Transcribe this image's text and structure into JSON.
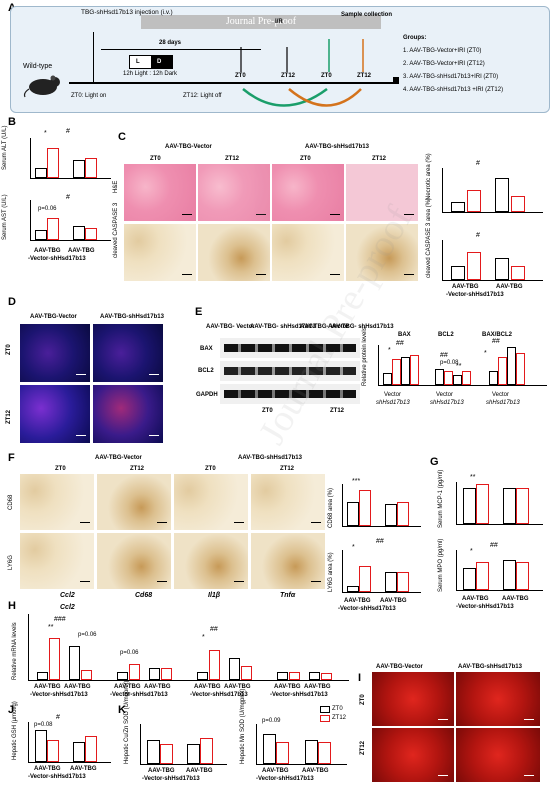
{
  "panel_letters": [
    "A",
    "B",
    "C",
    "D",
    "E",
    "F",
    "G",
    "H",
    "I",
    "J",
    "K"
  ],
  "banner": "Journal Pre-proof",
  "watermark": "Journal Pre-proof",
  "panelA": {
    "mouse_label": "Wild-type",
    "injection": "TBG-shHsd17b13 injection (i.v.)",
    "days": "28 days",
    "light_L": "L",
    "light_D": "D",
    "light_cycle": "12h Light : 12h Dark",
    "ir": "I/R",
    "sample": "Sample collection",
    "zt0": "ZT0",
    "zt12": "ZT12",
    "light_on": "ZT0: Light on",
    "light_off": "ZT12: Light off",
    "groups_title": "Groups:",
    "groups": [
      "1. AAV-TBG-Vector+IRI (ZT0)",
      "2. AAV-TBG-Vector+IRI (ZT12)",
      "3. AAV-TBG-shHsd17b13+IRI (ZT0)",
      "4. AAV-TBG-shHsd17b13 +IRI (ZT12)"
    ]
  },
  "labels": {
    "serum_alt": "Serum ALT (U/L)",
    "serum_ast": "Serum AST (U/L)",
    "aav_tbg": "AAV-TBG",
    "vector_sh": "-Vector-shHsd17b13",
    "vector": "AAV-TBG-Vector",
    "sh": "AAV-TBG-shHsd17b13",
    "he": "H&E",
    "cleaved": "cleaved CASPASE 3",
    "necrotic": "Necrotic area (%)",
    "cleaved_area": "cleaved CASPASE 3 area (%)",
    "bax": "BAX",
    "bcl2": "BCL2",
    "gapdh": "GAPDH",
    "bax_bcl2": "BAX/BCL2",
    "rel_protein": "Relative protein levels",
    "cd68": "CD68",
    "ly6g": "LY6G",
    "cd68_area": "CD68 area (%)",
    "ly6g_area": "LY6G area (%)",
    "mcp1": "Serum MCP-1 (pg/ml)",
    "mpo": "Serum MPO (pg/ml)",
    "rel_mrna": "Relative mRNA levels",
    "genes": [
      "Ccl2",
      "Cd68",
      "Il1β",
      "Tnfα"
    ],
    "gsh": "Hepatic GSH (μmol/g)",
    "cuzn": "Hepatic Cu/Zn SOD (U/mgprot)",
    "mn": "Hepatic Mn SOD (U/mgprot)",
    "legend_zt0": "ZT0",
    "legend_zt12": "ZT12",
    "p006": "p=0.06",
    "p008": "p=0.08",
    "p009": "p=0.09",
    "star1": "*",
    "star2": "**",
    "star3": "***",
    "hash1": "#",
    "hash2": "##",
    "hash3": "###",
    "e_vec": "AAV-TBG- Vector",
    "e_sh": "AAV-TBG- shHsd17b13",
    "shHsd17b13": "shHsd17b13",
    "vec_short": "Vector"
  },
  "chart_data": [
    {
      "type": "bar",
      "panel": "B",
      "ylabel": "Serum ALT (U/L)",
      "categories": [
        "Vector ZT0",
        "Vector ZT12",
        "sh ZT0",
        "sh ZT12"
      ],
      "values": [
        0.25,
        0.85,
        0.5,
        0.55
      ]
    },
    {
      "type": "bar",
      "panel": "B",
      "ylabel": "Serum AST (U/L)",
      "categories": [
        "Vector ZT0",
        "Vector ZT12",
        "sh ZT0",
        "sh ZT12"
      ],
      "values": [
        0.25,
        0.6,
        0.35,
        0.3
      ]
    },
    {
      "type": "bar",
      "panel": "C",
      "ylabel": "Necrotic area (%)",
      "categories": [
        "Vector ZT0",
        "Vector ZT12",
        "sh ZT0",
        "sh ZT12"
      ],
      "values": [
        0.2,
        0.5,
        0.75,
        0.35
      ]
    },
    {
      "type": "bar",
      "panel": "C",
      "ylabel": "cleaved CASPASE 3 area (%)",
      "categories": [
        "Vector ZT0",
        "Vector ZT12",
        "sh ZT0",
        "sh ZT12"
      ],
      "values": [
        0.35,
        0.75,
        0.55,
        0.35
      ]
    },
    {
      "type": "bar",
      "panel": "F",
      "ylabel": "CD68 area (%)",
      "categories": [
        "Vector ZT0",
        "Vector ZT12",
        "sh ZT0",
        "sh ZT12"
      ],
      "values": [
        0.6,
        0.95,
        0.55,
        0.6
      ]
    },
    {
      "type": "bar",
      "panel": "F",
      "ylabel": "LY6G area (%)",
      "categories": [
        "Vector ZT0",
        "Vector ZT12",
        "sh ZT0",
        "sh ZT12"
      ],
      "values": [
        0.1,
        0.6,
        0.45,
        0.45
      ]
    },
    {
      "type": "bar",
      "panel": "G",
      "ylabel": "Serum MCP-1 (pg/ml)",
      "categories": [
        "Vector ZT0",
        "Vector ZT12",
        "sh ZT0",
        "sh ZT12"
      ],
      "values": [
        0.85,
        0.95,
        0.85,
        0.85
      ]
    },
    {
      "type": "bar",
      "panel": "G",
      "ylabel": "Serum MPO (pg/ml)",
      "categories": [
        "Vector ZT0",
        "Vector ZT12",
        "sh ZT0",
        "sh ZT12"
      ],
      "values": [
        0.5,
        0.65,
        0.7,
        0.65
      ]
    },
    {
      "type": "bar",
      "panel": "J",
      "ylabel": "Hepatic GSH (μmol/g)",
      "categories": [
        "Vector ZT0",
        "Vector ZT12",
        "sh ZT0",
        "sh ZT12"
      ],
      "values": [
        0.85,
        0.6,
        0.55,
        0.7
      ]
    },
    {
      "type": "bar",
      "panel": "K",
      "ylabel": "Hepatic Cu/Zn SOD (U/mgprot)",
      "categories": [
        "Vector ZT0",
        "Vector ZT12",
        "sh ZT0",
        "sh ZT12"
      ],
      "values": [
        0.6,
        0.5,
        0.5,
        0.6
      ]
    },
    {
      "type": "bar",
      "panel": "K",
      "ylabel": "Hepatic Mn SOD (U/mgprot)",
      "categories": [
        "Vector ZT0",
        "Vector ZT12",
        "sh ZT0",
        "sh ZT12"
      ],
      "values": [
        0.75,
        0.55,
        0.6,
        0.55
      ]
    }
  ]
}
